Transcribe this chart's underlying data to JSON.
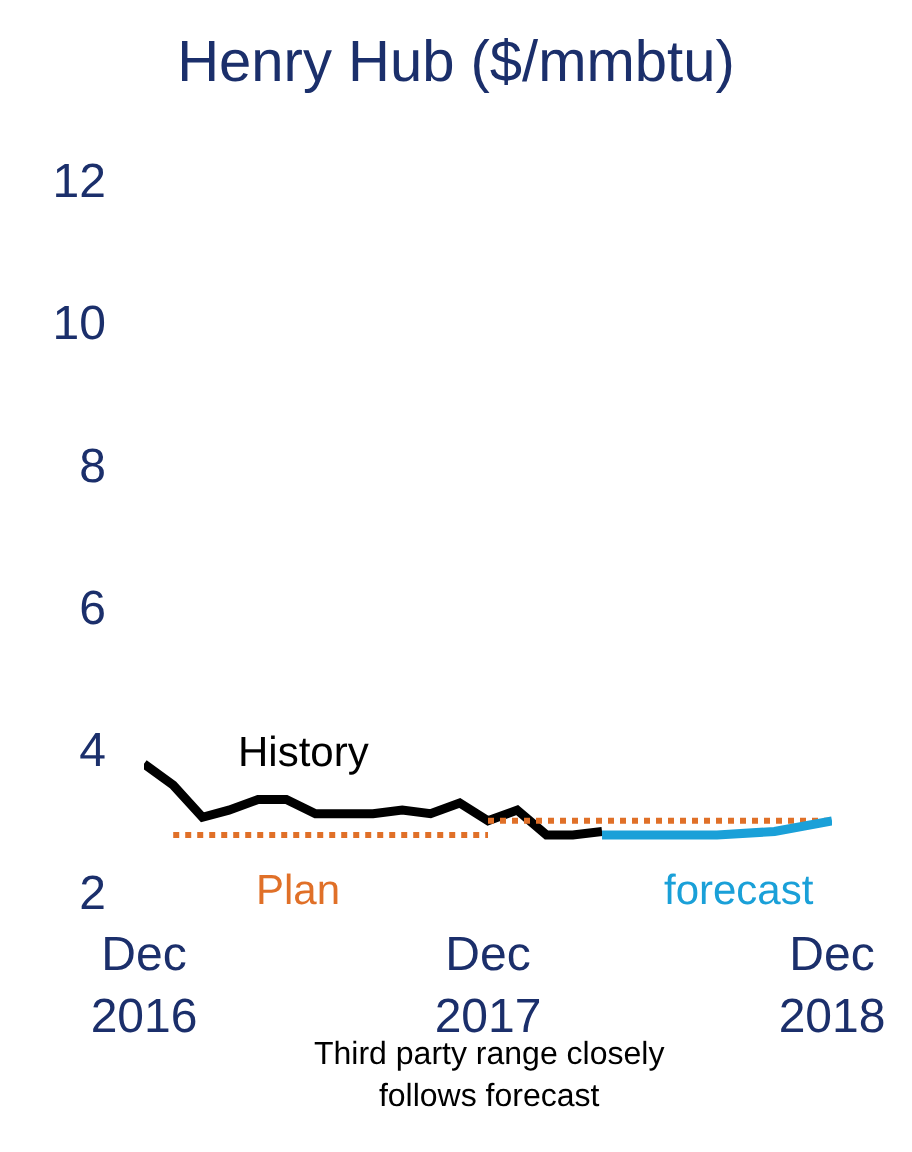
{
  "chart_data": {
    "type": "line",
    "title": "Henry Hub ($/mmbtu)",
    "x": [
      "2016-12",
      "2017-01",
      "2017-02",
      "2017-03",
      "2017-04",
      "2017-05",
      "2017-06",
      "2017-07",
      "2017-08",
      "2017-09",
      "2017-10",
      "2017-11",
      "2017-12",
      "2018-01",
      "2018-02",
      "2018-03",
      "2018-04"
    ],
    "series": [
      {
        "name": "History",
        "color": "#000000",
        "line_style": "solid",
        "values": [
          3.8,
          3.5,
          3.05,
          3.15,
          3.3,
          3.3,
          3.1,
          3.1,
          3.1,
          3.15,
          3.1,
          3.25,
          3.0,
          3.15,
          2.8,
          2.8,
          2.85
        ]
      },
      {
        "name": "Plan",
        "color": "#e07028",
        "line_style": "dotted",
        "x": [
          "2017-01",
          "2017-12"
        ],
        "values": [
          2.8,
          2.8
        ]
      },
      {
        "color": "#e07028",
        "line_style": "dotted",
        "x": [
          "2017-12",
          "2018-12"
        ],
        "values": [
          3.0,
          3.0
        ]
      },
      {
        "name": "forecast",
        "color": "#1aa0d8",
        "line_style": "solid",
        "x": [
          "2018-04",
          "2018-06",
          "2018-08",
          "2018-10",
          "2018-12"
        ],
        "values": [
          2.8,
          2.8,
          2.8,
          2.85,
          3.0
        ]
      }
    ],
    "xlim": [
      "2016-12",
      "2018-12"
    ],
    "xticks": [
      {
        "value": "2016-12",
        "label": "Dec\n2016"
      },
      {
        "value": "2017-12",
        "label": "Dec\n2017"
      },
      {
        "value": "2018-12",
        "label": "Dec\n2018"
      }
    ],
    "ylim": [
      2,
      12
    ],
    "yticks": [
      2,
      4,
      6,
      8,
      10,
      12
    ],
    "legend": false,
    "annotations": [
      "Third party range closely\nfollows forecast"
    ]
  }
}
